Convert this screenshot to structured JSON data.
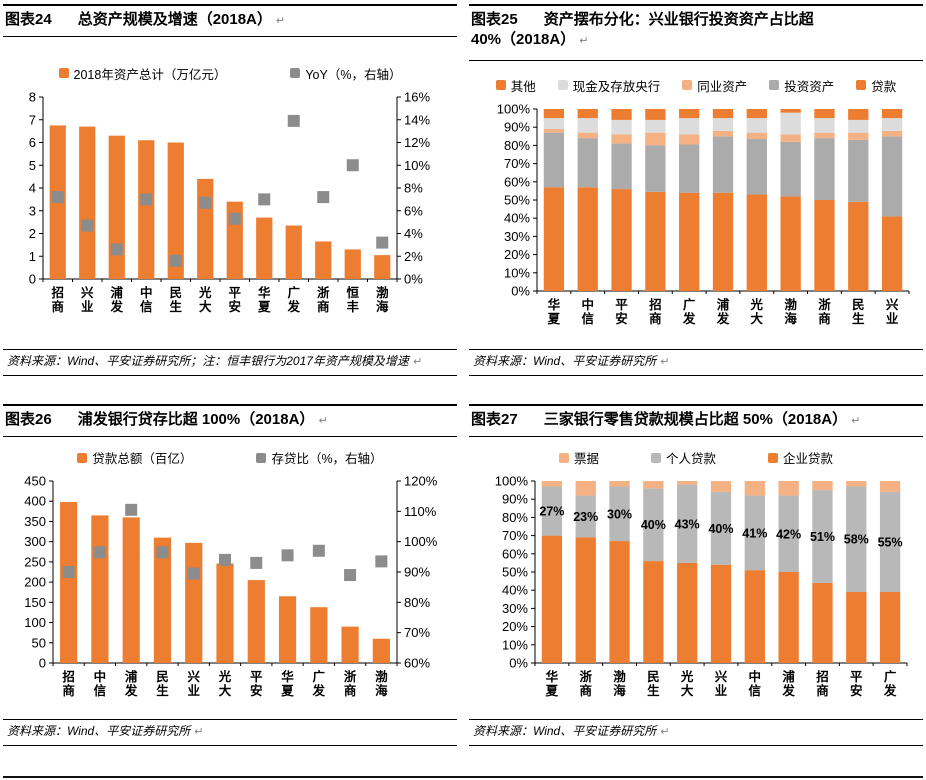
{
  "page": {
    "return_mark": "↵"
  },
  "figures": [
    {
      "tag": "图表24",
      "title": "总资产规模及增速（2018A）",
      "source": "资料来源：Wind、平安证券研究所；注：恒丰银行为2017年资产规模及增速",
      "chart_data": {
        "type": "bar",
        "subtype": "bar-with-scatter-dual-axis",
        "grid": false,
        "legend_position": "top",
        "categories": [
          "招商",
          "兴业",
          "浦发",
          "中信",
          "民生",
          "光大",
          "平安",
          "华夏",
          "广发",
          "浙商",
          "恒丰",
          "渤海"
        ],
        "series": [
          {
            "name": "2018年资产总计（万亿元）",
            "kind": "bar",
            "axis": "left",
            "color": "#ED7D31",
            "values": [
              6.75,
              6.7,
              6.3,
              6.1,
              6.0,
              4.4,
              3.4,
              2.7,
              2.35,
              1.65,
              1.3,
              1.05
            ]
          },
          {
            "name": "YoY（%，右轴）",
            "kind": "scatter-square",
            "axis": "right",
            "color": "#8C8C8C",
            "values": [
              7.2,
              4.7,
              2.6,
              7.0,
              1.6,
              6.7,
              5.3,
              7.0,
              13.9,
              7.2,
              10.0,
              3.2
            ]
          }
        ],
        "left_axis": {
          "min": 0,
          "max": 8,
          "step": 1,
          "suffix": ""
        },
        "right_axis": {
          "min": 0,
          "max": 16,
          "step": 2,
          "suffix": "%"
        }
      }
    },
    {
      "tag": "图表25",
      "title": "资产摆布分化：兴业银行投资资产占比超 40%（2018A）",
      "source": "资料来源：Wind、平安证券研究所",
      "chart_data": {
        "type": "bar",
        "subtype": "stacked-bar-100",
        "grid": false,
        "legend_position": "top",
        "categories": [
          "华夏",
          "中信",
          "平安",
          "招商",
          "广发",
          "浦发",
          "光大",
          "渤海",
          "浙商",
          "民生",
          "兴业"
        ],
        "series": [
          {
            "name": "贷款",
            "color": "#ED7D31",
            "values": [
              57,
              57,
              56,
              54.5,
              54,
              54,
              53,
              52,
              50,
              49,
              41
            ]
          },
          {
            "name": "投资资产",
            "color": "#ABABAB",
            "values": [
              30,
              27,
              25,
              25.5,
              26.5,
              31,
              30.5,
              30,
              34,
              34,
              44
            ]
          },
          {
            "name": "同业资产",
            "color": "#F4B183",
            "values": [
              2,
              3,
              5,
              7,
              5.5,
              3,
              3.5,
              4,
              3,
              4,
              3
            ]
          },
          {
            "name": "现金及存放央行",
            "color": "#DCDCDC",
            "values": [
              6,
              8,
              8,
              7,
              9,
              7,
              8,
              12,
              8,
              7,
              7
            ]
          },
          {
            "name": "其他",
            "color": "#ED7D31",
            "values": [
              5,
              5,
              6,
              6,
              5,
              5,
              5,
              2,
              5,
              6,
              5
            ]
          }
        ],
        "y_axis": {
          "min": 0,
          "max": 100,
          "step": 10,
          "suffix": "%"
        }
      }
    },
    {
      "tag": "图表26",
      "title": "浦发银行贷存比超 100%（2018A）",
      "source": "资料来源：Wind、平安证券研究所",
      "chart_data": {
        "type": "bar",
        "subtype": "bar-with-scatter-dual-axis",
        "grid": false,
        "legend_position": "top",
        "categories": [
          "招商",
          "中信",
          "浦发",
          "民生",
          "兴业",
          "光大",
          "平安",
          "华夏",
          "广发",
          "浙商",
          "渤海"
        ],
        "series": [
          {
            "name": "贷款总额（百亿）",
            "kind": "bar",
            "axis": "left",
            "color": "#ED7D31",
            "values": [
              398,
              365,
              360,
              310,
              297,
              246,
              205,
              165,
              138,
              90,
              60
            ]
          },
          {
            "name": "存贷比（%，右轴）",
            "kind": "scatter-square",
            "axis": "right",
            "color": "#8C8C8C",
            "values": [
              90,
              96.5,
              110.5,
              96.5,
              89.5,
              94,
              93,
              95.5,
              97,
              89,
              93.5
            ]
          }
        ],
        "left_axis": {
          "min": 0,
          "max": 450,
          "step": 50,
          "suffix": ""
        },
        "right_axis": {
          "min": 60,
          "max": 120,
          "step": 10,
          "suffix": "%"
        }
      }
    },
    {
      "tag": "图表27",
      "title": "三家银行零售贷款规模占比超 50%（2018A）",
      "source": "资料来源：Wind、平安证券研究所",
      "chart_data": {
        "type": "bar",
        "subtype": "stacked-bar-100",
        "grid": false,
        "legend_position": "top",
        "categories": [
          "华夏",
          "浙商",
          "渤海",
          "民生",
          "光大",
          "兴业",
          "中信",
          "浦发",
          "招商",
          "平安",
          "广发"
        ],
        "series": [
          {
            "name": "企业贷款",
            "color": "#ED7D31",
            "values": [
              70,
              69,
              67,
              56,
              55,
              54,
              51,
              50,
              44,
              39,
              39
            ]
          },
          {
            "name": "个人贷款",
            "color": "#B8B8B8",
            "data_labels": true,
            "label_suffix": "%",
            "values": [
              27,
              23,
              30,
              40,
              43,
              40,
              41,
              42,
              51,
              58,
              55
            ]
          },
          {
            "name": "票据",
            "color": "#F4B183",
            "values": [
              3,
              8,
              3,
              4,
              2,
              6,
              8,
              8,
              5,
              3,
              6
            ]
          }
        ],
        "y_axis": {
          "min": 0,
          "max": 100,
          "step": 10,
          "suffix": "%"
        }
      }
    }
  ]
}
